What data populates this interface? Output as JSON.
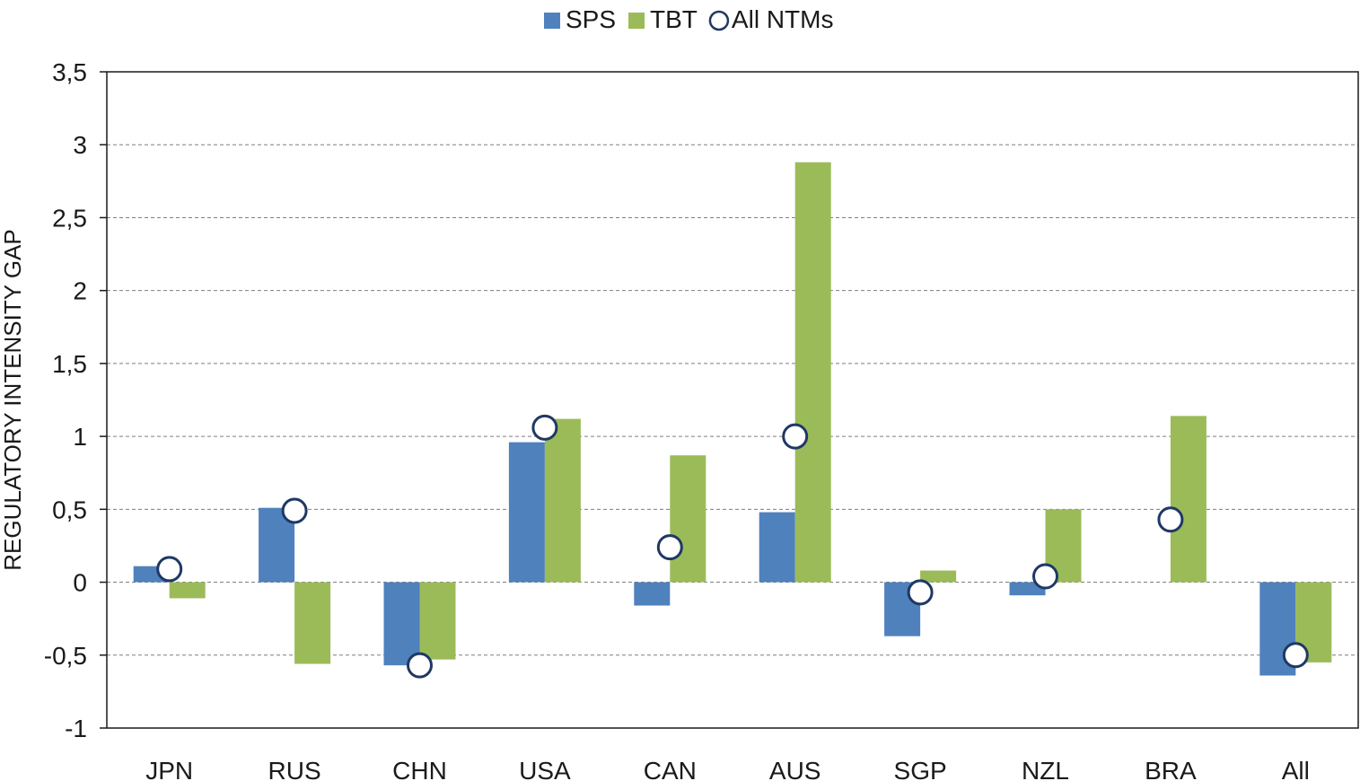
{
  "chart_data": {
    "type": "bar",
    "categories": [
      "JPN",
      "RUS",
      "CHN",
      "USA",
      "CAN",
      "AUS",
      "SGP",
      "NZL",
      "BRA",
      "All"
    ],
    "series": [
      {
        "name": "SPS",
        "kind": "bar",
        "color": "#4f81bd",
        "values": [
          0.11,
          0.51,
          -0.57,
          0.96,
          -0.16,
          0.48,
          -0.37,
          -0.09,
          0.0,
          -0.64
        ]
      },
      {
        "name": "TBT",
        "kind": "bar",
        "color": "#9bbb59",
        "values": [
          -0.11,
          -0.56,
          -0.53,
          1.12,
          0.87,
          2.88,
          0.08,
          0.5,
          1.14,
          -0.55
        ]
      },
      {
        "name": "All NTMs",
        "kind": "marker",
        "color": "#1f3864",
        "values": [
          0.09,
          0.49,
          -0.57,
          1.06,
          0.24,
          1.0,
          -0.07,
          0.04,
          0.43,
          -0.5
        ]
      }
    ],
    "ylabel": "REGULATORY INTENSITY GAP",
    "ylim": [
      -1,
      3.5
    ],
    "yticks": [
      -1,
      -0.5,
      0,
      0.5,
      1,
      1.5,
      2,
      2.5,
      3,
      3.5
    ],
    "ytick_labels": [
      "-1",
      "-0,5",
      "0",
      "0,5",
      "1",
      "1,5",
      "2",
      "2,5",
      "3",
      "3,5"
    ],
    "grid": "horizontal-dashed",
    "legend_position": "top-center"
  }
}
